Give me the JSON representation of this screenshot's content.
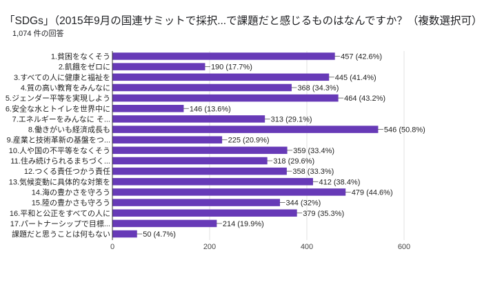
{
  "chart_data": {
    "type": "bar",
    "orientation": "horizontal",
    "title": "「SDGs」（2015年9月の国連サミットで採択...で課題だと感じるものはなんですか？（複数選択可）",
    "subtitle": "1,074 件の回答",
    "categories": [
      "1.貧困をなくそう",
      "2.飢餓をゼロに",
      "3.すべての人に健康と福祉を",
      "4.質の高い教育をみんなに",
      "5.ジェンダー平等を実現しよう",
      "6.安全な水とトイレを世界中に",
      "7.エネルギーをみんなに そ...",
      "8.働きがいも経済成長も",
      "9.産業と技術革新の基盤をつ...",
      "10.人や国の不平等をなくそう",
      "11.住み続けられるまちづく...",
      "12.つくる責任つかう責任",
      "13.気候変動に具体的な対策を",
      "14.海の豊かさを守ろう",
      "15.陸の豊かさも守ろう",
      "16.平和と公正をすべての人に",
      "17.パートナーシップで目標...",
      "課題だと思うことは何もない"
    ],
    "values": [
      457,
      190,
      445,
      368,
      464,
      146,
      313,
      546,
      225,
      359,
      318,
      358,
      412,
      479,
      344,
      379,
      214,
      50
    ],
    "data_labels": [
      "457 (42.6%)",
      "190 (17.7%)",
      "445 (41.4%)",
      "368 (34.3%)",
      "464 (43.2%)",
      "146 (13.6%)",
      "313 (29.1%)",
      "546 (50.8%)",
      "225 (20.9%)",
      "359 (33.4%)",
      "318 (29.6%)",
      "358 (33.3%)",
      "412 (38.4%)",
      "479 (44.6%)",
      "344 (32%)",
      "379 (35.3%)",
      "214 (19.9%)",
      "50 (4.7%)"
    ],
    "xlim": [
      0,
      600
    ],
    "xticks": [
      "0",
      "200",
      "400",
      "600"
    ],
    "grid": true,
    "color": "#673ab7"
  }
}
